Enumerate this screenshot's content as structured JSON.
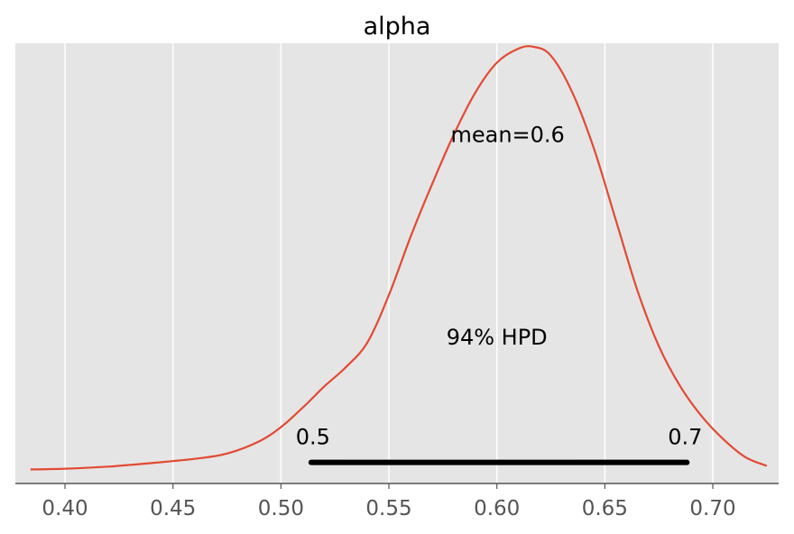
{
  "chart_data": {
    "type": "line",
    "title": "alpha",
    "xlabel": "",
    "ylabel": "",
    "xlim": [
      0.377,
      0.7305
    ],
    "ylim": [
      -0.4,
      12.1
    ],
    "x_ticks": [
      0.4,
      0.45,
      0.5,
      0.55,
      0.6,
      0.65,
      0.7
    ],
    "x_tick_labels": [
      "0.40",
      "0.45",
      "0.50",
      "0.55",
      "0.60",
      "0.65",
      "0.70"
    ],
    "y_ticks_shown": false,
    "grid": true,
    "series": [
      {
        "type": "density",
        "color": "#E24A33",
        "points": [
          [
            0.384,
            0.0
          ],
          [
            0.4,
            0.02
          ],
          [
            0.42,
            0.08
          ],
          [
            0.44,
            0.18
          ],
          [
            0.46,
            0.3
          ],
          [
            0.475,
            0.45
          ],
          [
            0.49,
            0.8
          ],
          [
            0.5,
            1.2
          ],
          [
            0.51,
            1.75
          ],
          [
            0.52,
            2.35
          ],
          [
            0.53,
            2.9
          ],
          [
            0.54,
            3.6
          ],
          [
            0.55,
            4.95
          ],
          [
            0.56,
            6.6
          ],
          [
            0.57,
            8.1
          ],
          [
            0.58,
            9.5
          ],
          [
            0.59,
            10.7
          ],
          [
            0.6,
            11.55
          ],
          [
            0.61,
            11.95
          ],
          [
            0.617,
            12.0
          ],
          [
            0.625,
            11.75
          ],
          [
            0.635,
            10.7
          ],
          [
            0.645,
            9.1
          ],
          [
            0.655,
            7.1
          ],
          [
            0.665,
            5.1
          ],
          [
            0.675,
            3.5
          ],
          [
            0.685,
            2.35
          ],
          [
            0.695,
            1.5
          ],
          [
            0.705,
            0.85
          ],
          [
            0.715,
            0.35
          ],
          [
            0.725,
            0.1
          ]
        ]
      }
    ],
    "annotations": {
      "mean_label": "mean=0.6",
      "mean_pos": [
        0.605,
        9.3
      ],
      "hpd_label": "94% HPD",
      "hpd_label_pos": [
        0.6,
        3.55
      ],
      "hpd_interval": [
        0.514,
        0.688
      ],
      "hpd_level": 0.2,
      "hpd_low_label": "0.5",
      "hpd_high_label": "0.7"
    }
  },
  "colors": {
    "background": "#E5E5E5",
    "grid": "#FFFFFF",
    "line": "#E24A33",
    "hpd_bar": "#000000",
    "axis": "#555555"
  }
}
